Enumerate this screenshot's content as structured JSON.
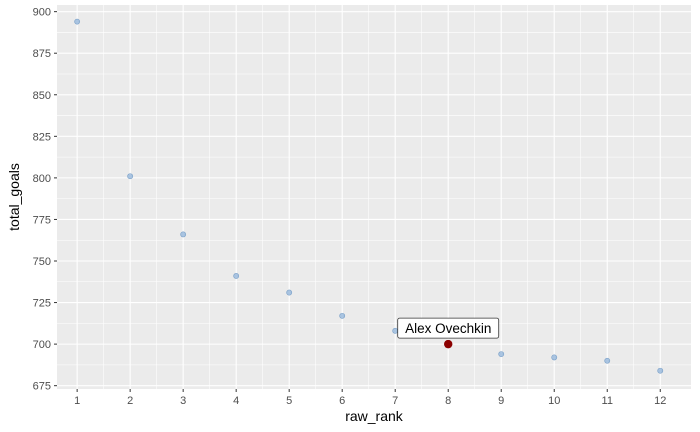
{
  "chart_data": {
    "type": "scatter",
    "title": "",
    "xlabel": "raw_rank",
    "ylabel": "total_goals",
    "xlim": [
      0.62,
      12.58
    ],
    "ylim": [
      673,
      904
    ],
    "grid": true,
    "x_ticks": [
      1,
      2,
      3,
      4,
      5,
      6,
      7,
      8,
      9,
      10,
      11,
      12
    ],
    "y_ticks": [
      675,
      700,
      725,
      750,
      775,
      800,
      825,
      850,
      875,
      900
    ],
    "x_tick_labels": [
      "1",
      "2",
      "3",
      "4",
      "5",
      "6",
      "7",
      "8",
      "9",
      "10",
      "11",
      "12"
    ],
    "y_tick_labels": [
      "675",
      "700",
      "725",
      "750",
      "775",
      "800",
      "825",
      "850",
      "875",
      "900"
    ],
    "points": [
      {
        "x": 1,
        "y": 894
      },
      {
        "x": 2,
        "y": 801
      },
      {
        "x": 3,
        "y": 766
      },
      {
        "x": 4,
        "y": 741
      },
      {
        "x": 5,
        "y": 731
      },
      {
        "x": 6,
        "y": 717
      },
      {
        "x": 7,
        "y": 708
      },
      {
        "x": 8,
        "y": 700,
        "highlight": true
      },
      {
        "x": 9,
        "y": 694
      },
      {
        "x": 10,
        "y": 692
      },
      {
        "x": 11,
        "y": 690
      },
      {
        "x": 12,
        "y": 684
      }
    ],
    "annotation": {
      "x": 8,
      "y": 700,
      "text": "Alex Ovechkin"
    },
    "colors": {
      "panel": "#ebebeb",
      "grid_major": "#ffffff",
      "point": "#8fb3d9",
      "highlight": "#8b0000"
    }
  }
}
